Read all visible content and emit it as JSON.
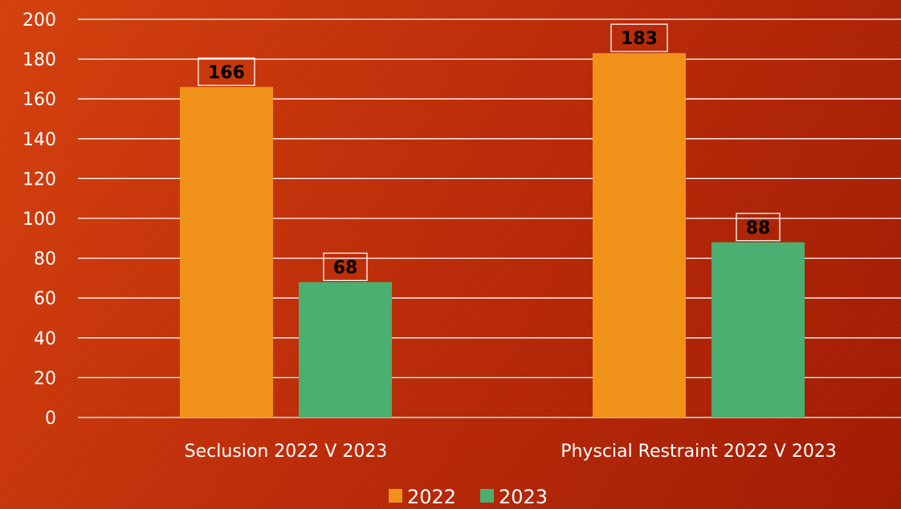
{
  "chart_data": {
    "type": "bar",
    "categories": [
      "Seclusion 2022 V 2023",
      "Physcial Restraint 2022 V 2023"
    ],
    "series": [
      {
        "name": "2022",
        "values": [
          166,
          183
        ],
        "color": "#f0921a"
      },
      {
        "name": "2023",
        "values": [
          68,
          88
        ],
        "color": "#4caf72"
      }
    ],
    "ylim": [
      0,
      200
    ],
    "yticks": [
      0,
      20,
      40,
      60,
      80,
      100,
      120,
      140,
      160,
      180,
      200
    ],
    "grid": true,
    "legend_position": "bottom",
    "data_labels": true
  }
}
